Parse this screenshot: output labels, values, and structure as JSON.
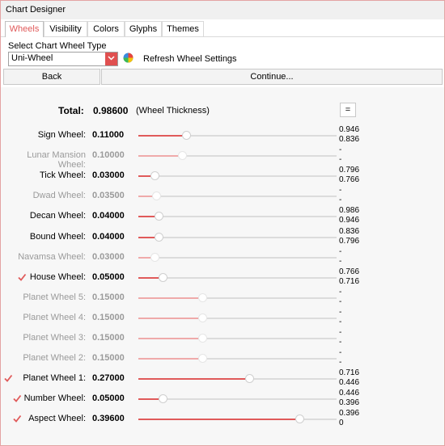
{
  "window": {
    "title": "Chart Designer"
  },
  "tabs": [
    {
      "label": "Wheels",
      "active": true
    },
    {
      "label": "Visibility",
      "active": false
    },
    {
      "label": "Colors",
      "active": false
    },
    {
      "label": "Glyphs",
      "active": false
    },
    {
      "label": "Themes",
      "active": false
    }
  ],
  "wheel_type": {
    "label": "Select Chart Wheel Type",
    "selected": "Uni-Wheel",
    "refresh_label": "Refresh Wheel Settings"
  },
  "buttons": {
    "back": "Back",
    "continue": "Continue..."
  },
  "total": {
    "label": "Total:",
    "value": "0.98600",
    "note": "(Wheel Thickness)",
    "equals_button": "="
  },
  "colors": {
    "accent": "#e05a5a",
    "accent_light": "#efaaaa",
    "muted_text": "#9a9a9a"
  },
  "wheels": [
    {
      "label": "Sign Wheel:",
      "value": "0.11000",
      "fraction": 0.11,
      "enabled": true,
      "checked": null,
      "side": [
        "0.946",
        "0.836"
      ]
    },
    {
      "label": "Lunar Mansion Wheel:",
      "value": "0.10000",
      "fraction": 0.1,
      "enabled": false,
      "checked": null,
      "side": [
        "-",
        "-"
      ]
    },
    {
      "label": "Tick Wheel:",
      "value": "0.03000",
      "fraction": 0.03,
      "enabled": true,
      "checked": null,
      "side": [
        "0.796",
        "0.766"
      ]
    },
    {
      "label": "Dwad Wheel:",
      "value": "0.03500",
      "fraction": 0.035,
      "enabled": false,
      "checked": null,
      "side": [
        "-",
        "-"
      ]
    },
    {
      "label": "Decan Wheel:",
      "value": "0.04000",
      "fraction": 0.04,
      "enabled": true,
      "checked": null,
      "side": [
        "0.986",
        "0.946"
      ]
    },
    {
      "label": "Bound Wheel:",
      "value": "0.04000",
      "fraction": 0.04,
      "enabled": true,
      "checked": null,
      "side": [
        "0.836",
        "0.796"
      ]
    },
    {
      "label": "Navamsa Wheel:",
      "value": "0.03000",
      "fraction": 0.03,
      "enabled": false,
      "checked": null,
      "side": [
        "-",
        "-"
      ]
    },
    {
      "label": "House Wheel:",
      "value": "0.05000",
      "fraction": 0.05,
      "enabled": true,
      "checked": true,
      "side": [
        "0.766",
        "0.716"
      ]
    },
    {
      "label": "Planet Wheel 5:",
      "value": "0.15000",
      "fraction": 0.15,
      "enabled": false,
      "checked": null,
      "side": [
        "-",
        "-"
      ]
    },
    {
      "label": "Planet Wheel 4:",
      "value": "0.15000",
      "fraction": 0.15,
      "enabled": false,
      "checked": null,
      "side": [
        "-",
        "-"
      ]
    },
    {
      "label": "Planet Wheel 3:",
      "value": "0.15000",
      "fraction": 0.15,
      "enabled": false,
      "checked": null,
      "side": [
        "-",
        "-"
      ]
    },
    {
      "label": "Planet Wheel 2:",
      "value": "0.15000",
      "fraction": 0.15,
      "enabled": false,
      "checked": null,
      "side": [
        "-",
        "-"
      ]
    },
    {
      "label": "Planet Wheel 1:",
      "value": "0.27000",
      "fraction": 0.27,
      "enabled": true,
      "checked": true,
      "side": [
        "0.716",
        "0.446"
      ]
    },
    {
      "label": "Number Wheel:",
      "value": "0.05000",
      "fraction": 0.05,
      "enabled": true,
      "checked": true,
      "side": [
        "0.446",
        "0.396"
      ]
    },
    {
      "label": "Aspect Wheel:",
      "value": "0.39600",
      "fraction": 0.396,
      "enabled": true,
      "checked": true,
      "side": [
        "0.396",
        "0"
      ]
    }
  ]
}
